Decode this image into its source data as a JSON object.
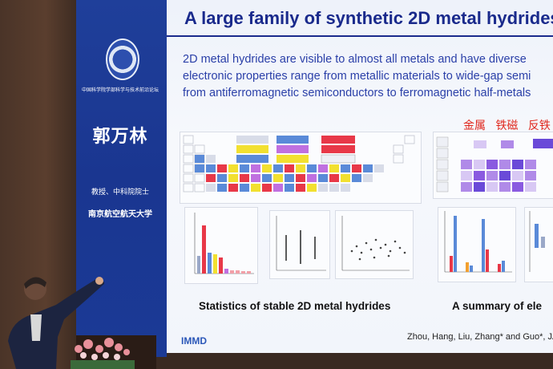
{
  "side_panel": {
    "logo_text": "中国科学院学部科学与技术前沿论坛",
    "speaker_name": "郭万林",
    "speaker_title": "教授、中科院院士",
    "speaker_org": "南京航空航天大学"
  },
  "slide": {
    "title": "A large family of synthetic 2D metal hydrides",
    "body_lines": [
      "2D metal hydrides are visible to almost all metals and have diverse",
      "electronic properties range from metallic materials to wide-gap semi",
      "from antiferromagnetic semiconductors to ferromagnetic half-metals"
    ],
    "chinese_labels": [
      "金属",
      "铁磁",
      "反铁"
    ],
    "caption_left": "Statistics of stable 2D metal hydrides",
    "caption_right": "A summary of ele",
    "footer_logo": "IMMD",
    "citation": "Zhou, Hang, Liu, Zhang* and Guo*, JA"
  },
  "colors": {
    "panel_blue": "#1b3a96",
    "title_blue": "#1a2a8c",
    "text_blue": "#2a3fa8",
    "chinese_red": "#e0281e"
  }
}
